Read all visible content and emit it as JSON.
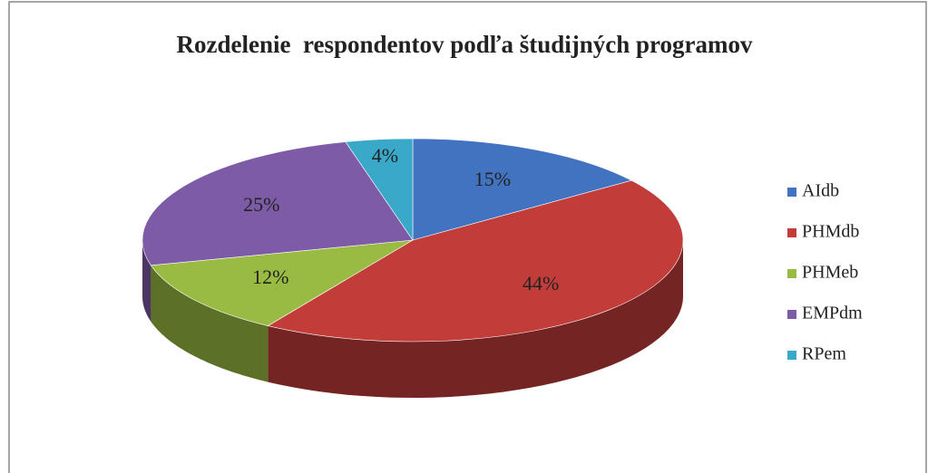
{
  "chart_data": {
    "type": "pie",
    "title": "Rozdelenie  respondentov podľa študijných programov",
    "categories": [
      "AIdb",
      "PHMdb",
      "PHMeb",
      "EMPdm",
      "RPem"
    ],
    "values": [
      15,
      44,
      12,
      25,
      4
    ],
    "value_labels": [
      "15%",
      "44%",
      "12%",
      "25%",
      "4%"
    ],
    "colors": [
      "#4173c0",
      "#c23d39",
      "#99bb44",
      "#7d5ba6",
      "#3aa9c9"
    ],
    "legend": "right"
  }
}
